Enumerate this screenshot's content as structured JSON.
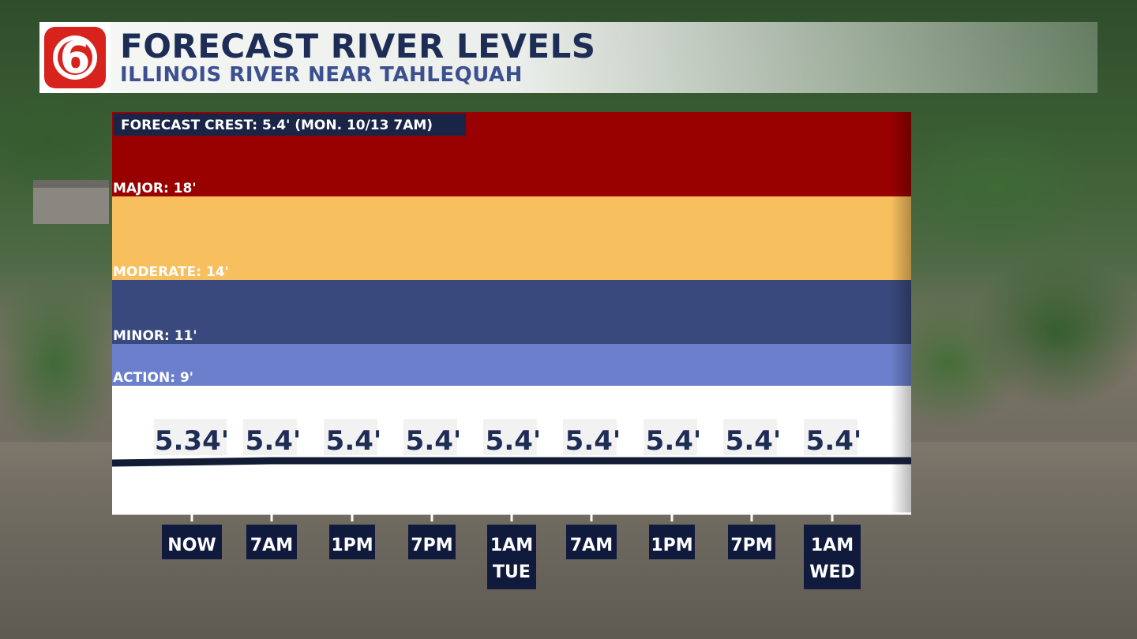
{
  "header": {
    "title": "FORECAST RIVER LEVELS",
    "subtitle": "ILLINOIS RIVER NEAR TAHLEQUAH",
    "logo_text": "6"
  },
  "chart_data": {
    "type": "line",
    "title": "FORECAST RIVER LEVELS",
    "subtitle": "ILLINOIS RIVER NEAR TAHLEQUAH",
    "annotation": "FORECAST CREST: 5.4' (MON. 10/13 7AM)",
    "x_labels": [
      [
        "NOW"
      ],
      [
        "7AM"
      ],
      [
        "1PM"
      ],
      [
        "7PM"
      ],
      [
        "1AM",
        "TUE"
      ],
      [
        "7AM"
      ],
      [
        "1PM"
      ],
      [
        "7PM"
      ],
      [
        "1AM",
        "WED"
      ]
    ],
    "values": [
      5.34,
      5.4,
      5.4,
      5.4,
      5.4,
      5.4,
      5.4,
      5.4,
      5.4
    ],
    "value_labels": [
      "5.34'",
      "5.4'",
      "5.4'",
      "5.4'",
      "5.4'",
      "5.4'",
      "5.4'",
      "5.4'",
      "5.4'"
    ],
    "flood_stages": [
      {
        "label": "MAJOR: 18'",
        "value": 18,
        "color": "#990000"
      },
      {
        "label": "MODERATE: 14'",
        "value": 14,
        "color": "#f8bf5e"
      },
      {
        "label": "MINOR: 11'",
        "value": 11,
        "color": "#39497d"
      },
      {
        "label": "ACTION: 9'",
        "value": 9,
        "color": "#6b7fcc"
      }
    ],
    "line_color": "#121c34",
    "label_color": "#1e2d55",
    "tick_bg": "#0f1a3d"
  }
}
